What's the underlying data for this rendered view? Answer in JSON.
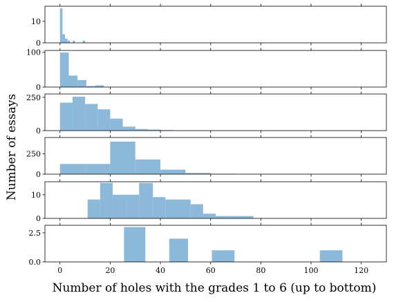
{
  "chart_data": {
    "type": "bar",
    "layout": "6 vertically stacked histograms sharing x-axis",
    "xlabel": "Number of holes with the grades 1 to 6 (up to bottom)",
    "ylabel": "Number of essays",
    "xlim": [
      -6,
      130
    ],
    "xticks": [
      0,
      20,
      40,
      60,
      80,
      100,
      120
    ],
    "xtick_labels": [
      "0",
      "20",
      "40",
      "60",
      "80",
      "100",
      "120"
    ],
    "grid": false,
    "bar_color": "#8cb9d9",
    "panels": [
      {
        "grade": 1,
        "ylim": [
          0,
          17
        ],
        "yticks": [
          0,
          10
        ],
        "bins": [
          {
            "x0": 0.0,
            "x1": 1.0,
            "value": 16
          },
          {
            "x0": 1.0,
            "x1": 2.0,
            "value": 4
          },
          {
            "x0": 2.0,
            "x1": 3.0,
            "value": 2
          },
          {
            "x0": 3.0,
            "x1": 4.0,
            "value": 1
          },
          {
            "x0": 4.0,
            "x1": 5.0,
            "value": 0
          },
          {
            "x0": 5.0,
            "x1": 6.0,
            "value": 1
          },
          {
            "x0": 9.0,
            "x1": 10.0,
            "value": 1
          }
        ]
      },
      {
        "grade": 2,
        "ylim": [
          0,
          105
        ],
        "yticks": [
          0,
          100
        ],
        "bins": [
          {
            "x0": 0.0,
            "x1": 3.5,
            "value": 99
          },
          {
            "x0": 3.5,
            "x1": 7.0,
            "value": 33
          },
          {
            "x0": 7.0,
            "x1": 10.5,
            "value": 20
          },
          {
            "x0": 10.5,
            "x1": 14.0,
            "value": 3
          },
          {
            "x0": 14.0,
            "x1": 17.5,
            "value": 5
          },
          {
            "x0": 17.5,
            "x1": 21.0,
            "value": 0
          },
          {
            "x0": 21.0,
            "x1": 24.5,
            "value": 0
          },
          {
            "x0": 24.5,
            "x1": 28.0,
            "value": 0
          }
        ]
      },
      {
        "grade": 3,
        "ylim": [
          0,
          275
        ],
        "yticks": [
          0,
          250
        ],
        "bins": [
          {
            "x0": 0.0,
            "x1": 5.0,
            "value": 210
          },
          {
            "x0": 5.0,
            "x1": 10.0,
            "value": 255
          },
          {
            "x0": 10.0,
            "x1": 15.0,
            "value": 200
          },
          {
            "x0": 15.0,
            "x1": 20.0,
            "value": 160
          },
          {
            "x0": 20.0,
            "x1": 25.0,
            "value": 90
          },
          {
            "x0": 25.0,
            "x1": 30.0,
            "value": 30
          },
          {
            "x0": 30.0,
            "x1": 35.0,
            "value": 12
          },
          {
            "x0": 35.0,
            "x1": 40.0,
            "value": 8
          },
          {
            "x0": 40.0,
            "x1": 45.0,
            "value": 4
          },
          {
            "x0": 45.0,
            "x1": 50.0,
            "value": 1
          },
          {
            "x0": 50.0,
            "x1": 55.0,
            "value": 2
          },
          {
            "x0": 55.0,
            "x1": 60.0,
            "value": 2
          },
          {
            "x0": 60.0,
            "x1": 65.0,
            "value": 2
          }
        ]
      },
      {
        "grade": 4,
        "ylim": [
          0,
          450
        ],
        "yticks": [
          0,
          250
        ],
        "bins": [
          {
            "x0": 0.0,
            "x1": 10.0,
            "value": 125
          },
          {
            "x0": 10.0,
            "x1": 20.0,
            "value": 125
          },
          {
            "x0": 20.0,
            "x1": 30.0,
            "value": 400
          },
          {
            "x0": 30.0,
            "x1": 40.0,
            "value": 180
          },
          {
            "x0": 40.0,
            "x1": 50.0,
            "value": 55
          },
          {
            "x0": 50.0,
            "x1": 60.0,
            "value": 15
          },
          {
            "x0": 60.0,
            "x1": 70.0,
            "value": 5
          }
        ]
      },
      {
        "grade": 5,
        "ylim": [
          0,
          15.5
        ],
        "yticks": [
          0,
          10
        ],
        "bins": [
          {
            "x0": 11.0,
            "x1": 16.0,
            "value": 8
          },
          {
            "x0": 16.0,
            "x1": 21.0,
            "value": 15
          },
          {
            "x0": 21.0,
            "x1": 26.5,
            "value": 10
          },
          {
            "x0": 26.5,
            "x1": 31.5,
            "value": 10
          },
          {
            "x0": 31.5,
            "x1": 37.0,
            "value": 15
          },
          {
            "x0": 37.0,
            "x1": 42.0,
            "value": 9
          },
          {
            "x0": 42.0,
            "x1": 47.0,
            "value": 8
          },
          {
            "x0": 47.0,
            "x1": 52.0,
            "value": 8
          },
          {
            "x0": 52.0,
            "x1": 57.0,
            "value": 6
          },
          {
            "x0": 57.0,
            "x1": 62.0,
            "value": 2
          },
          {
            "x0": 62.0,
            "x1": 67.0,
            "value": 1
          },
          {
            "x0": 67.0,
            "x1": 72.0,
            "value": 1
          },
          {
            "x0": 72.0,
            "x1": 77.0,
            "value": 1
          }
        ]
      },
      {
        "grade": 6,
        "ylim": [
          0,
          3.15
        ],
        "yticks": [
          0,
          2.5
        ],
        "ytick_labels": [
          "0.0",
          "2.5"
        ],
        "bins": [
          {
            "x0": 25.5,
            "x1": 34.0,
            "value": 3
          },
          {
            "x0": 43.5,
            "x1": 51.0,
            "value": 2
          },
          {
            "x0": 60.5,
            "x1": 69.5,
            "value": 1
          },
          {
            "x0": 103.5,
            "x1": 112.5,
            "value": 1
          }
        ]
      }
    ]
  }
}
